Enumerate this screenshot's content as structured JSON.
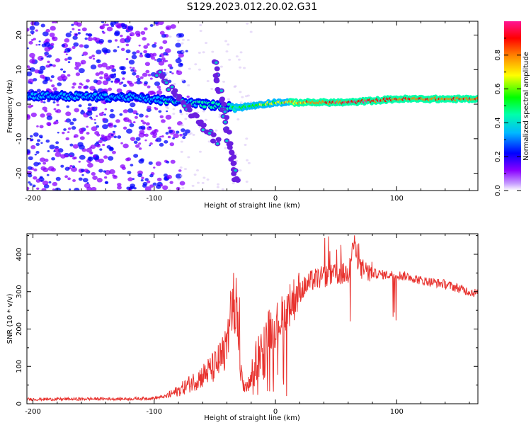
{
  "title": "S129.2023.012.20.02.G31",
  "colors": {
    "axis": "#000000",
    "snr_line": "#e8322e",
    "scatter_low": "#b48cf0",
    "scatter_mid": "#6a1ee0",
    "scatter_high": "#3b0fd0"
  },
  "chart_data": [
    {
      "type": "heatmap",
      "xlabel": "Height of straight line (km)",
      "ylabel": "Frequency (Hz)",
      "xlim": [
        -205,
        167
      ],
      "ylim": [
        -25,
        24
      ],
      "x_ticks": [
        -200,
        -100,
        0,
        100
      ],
      "y_ticks": [
        -20,
        -10,
        0,
        10,
        20
      ],
      "colorbar": {
        "label": "Normalized spectral amplitude",
        "range": [
          0.0,
          1.0
        ],
        "ticks": [
          "0.0",
          "0.2",
          "0.4",
          "0.6",
          "0.8"
        ],
        "tick_values": [
          0.0,
          0.2,
          0.4,
          0.6,
          0.8
        ],
        "colormap": [
          "#ffffff",
          "#8a00ff",
          "#0000ff",
          "#00d8ff",
          "#00ff40",
          "#ffff00",
          "#ff8000",
          "#ff0000",
          "#ff1493"
        ]
      },
      "features": {
        "noise_region_x": [
          -205,
          -85
        ],
        "carrier_band": [
          {
            "x": -205,
            "freq": 2.5,
            "amp": 0.25
          },
          {
            "x": -120,
            "freq": 2.0,
            "amp": 0.3
          },
          {
            "x": -30,
            "freq": -1.0,
            "amp": 0.45
          },
          {
            "x": 0,
            "freq": 0.5,
            "amp": 0.6
          },
          {
            "x": 30,
            "freq": 0.5,
            "amp": 0.8
          },
          {
            "x": 60,
            "freq": 0.5,
            "amp": 0.9
          },
          {
            "x": 100,
            "freq": 1.5,
            "amp": 0.85
          },
          {
            "x": 167,
            "freq": 1.5,
            "amp": 0.8
          }
        ],
        "diagonal_streaks": [
          {
            "from": [
              -97,
              9
            ],
            "to": [
              -48,
              -11
            ]
          },
          {
            "from": [
              -50,
              12
            ],
            "to": [
              -32,
              -23
            ]
          }
        ]
      }
    },
    {
      "type": "line",
      "xlabel": "Height of straight line (km)",
      "ylabel": "SNR (10 * v/v)",
      "xlim": [
        -205,
        167
      ],
      "ylim": [
        0,
        455
      ],
      "x_ticks": [
        -200,
        -100,
        0,
        100
      ],
      "y_ticks": [
        0,
        100,
        200,
        300,
        400
      ],
      "series": [
        {
          "x": [
            -205,
            -180,
            -150,
            -120,
            -100,
            -90,
            -80,
            -70,
            -60,
            -50,
            -45,
            -40,
            -35,
            -32,
            -30,
            -25,
            -20,
            -15,
            -10,
            -5,
            0,
            5,
            10,
            20,
            30,
            40,
            50,
            60,
            65,
            70,
            80,
            90,
            100,
            110,
            120,
            130,
            140,
            150,
            160,
            167
          ],
          "values": [
            12,
            12,
            13,
            13,
            15,
            20,
            35,
            55,
            75,
            100,
            120,
            150,
            250,
            300,
            90,
            40,
            60,
            130,
            170,
            200,
            210,
            230,
            260,
            300,
            330,
            340,
            345,
            350,
            430,
            360,
            350,
            345,
            345,
            340,
            330,
            325,
            320,
            310,
            300,
            295
          ]
        }
      ]
    }
  ]
}
